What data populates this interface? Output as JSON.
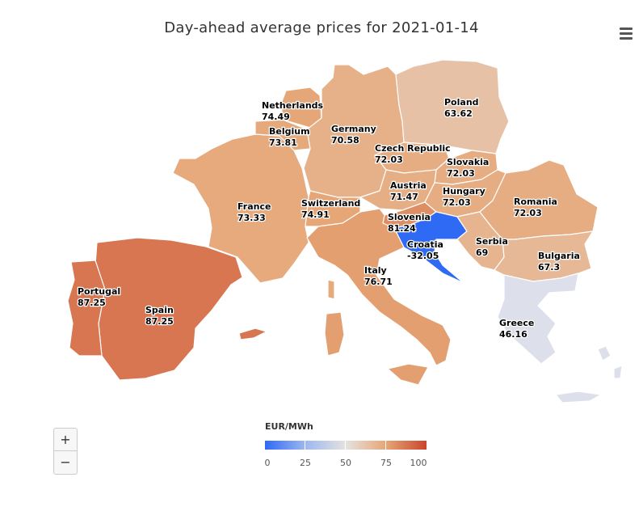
{
  "title": "Day-ahead average prices for 2021-01-14",
  "menu_icon": "hamburger-menu-icon",
  "zoom": {
    "in_label": "+",
    "out_label": "−"
  },
  "legend": {
    "title": "EUR/MWh",
    "ticks": [
      "0",
      "25",
      "50",
      "75",
      "100"
    ],
    "min": 0,
    "max": 100,
    "colors": [
      "#2f6af5",
      "#9db8ef",
      "#e5e2df",
      "#e6a676",
      "#c9452d"
    ]
  },
  "countries": [
    {
      "id": "netherlands",
      "name": "Netherlands",
      "price": "74.49",
      "value": 74.49
    },
    {
      "id": "belgium",
      "name": "Belgium",
      "price": "73.81",
      "value": 73.81
    },
    {
      "id": "germany",
      "name": "Germany",
      "price": "70.58",
      "value": 70.58
    },
    {
      "id": "poland",
      "name": "Poland",
      "price": "63.62",
      "value": 63.62
    },
    {
      "id": "czech-republic",
      "name": "Czech Republic",
      "price": "72.03",
      "value": 72.03
    },
    {
      "id": "slovakia",
      "name": "Slovakia",
      "price": "72.03",
      "value": 72.03
    },
    {
      "id": "austria",
      "name": "Austria",
      "price": "71.47",
      "value": 71.47
    },
    {
      "id": "hungary",
      "name": "Hungary",
      "price": "72.03",
      "value": 72.03
    },
    {
      "id": "romania",
      "name": "Romania",
      "price": "72.03",
      "value": 72.03
    },
    {
      "id": "france",
      "name": "France",
      "price": "73.33",
      "value": 73.33
    },
    {
      "id": "switzerland",
      "name": "Switzerland",
      "price": "74.91",
      "value": 74.91
    },
    {
      "id": "slovenia",
      "name": "Slovenia",
      "price": "81.24",
      "value": 81.24
    },
    {
      "id": "croatia",
      "name": "Croatia",
      "price": "-32.05",
      "value": -32.05
    },
    {
      "id": "serbia",
      "name": "Serbia",
      "price": "69",
      "value": 69
    },
    {
      "id": "bulgaria",
      "name": "Bulgaria",
      "price": "67.3",
      "value": 67.3
    },
    {
      "id": "italy",
      "name": "Italy",
      "price": "76.71",
      "value": 76.71
    },
    {
      "id": "portugal",
      "name": "Portugal",
      "price": "87.25",
      "value": 87.25
    },
    {
      "id": "spain",
      "name": "Spain",
      "price": "87.25",
      "value": 87.25
    },
    {
      "id": "greece",
      "name": "Greece",
      "price": "46.16",
      "value": 46.16
    }
  ]
}
